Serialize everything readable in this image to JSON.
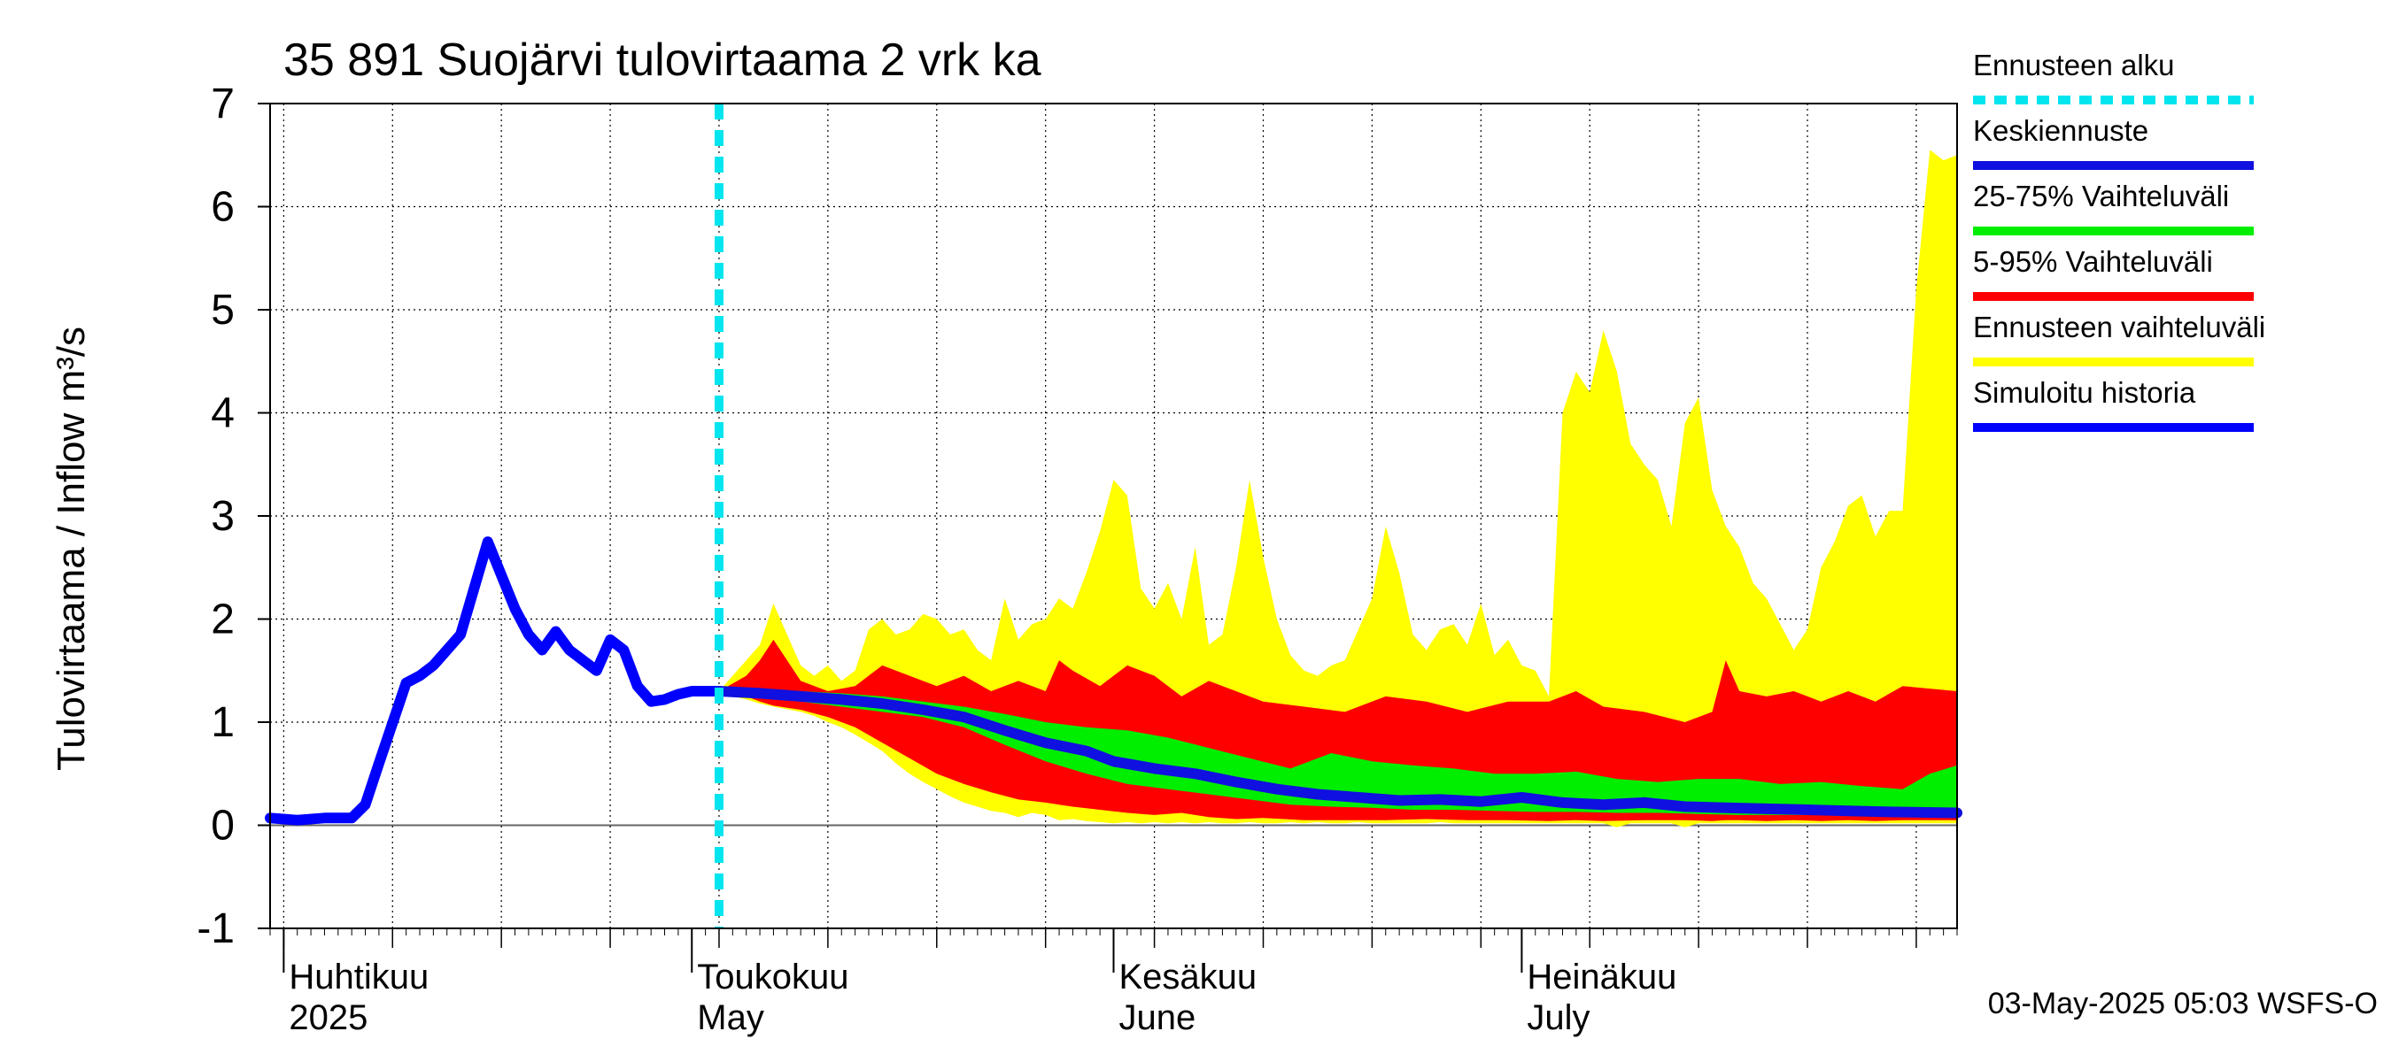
{
  "chart_data": {
    "type": "area",
    "title": "35 891 Suojärvi tulovirtaama 2 vrk ka",
    "ylabel": "Tulovirtaama / Inflow    m³/s",
    "ylim": [
      -1,
      7
    ],
    "yticks": [
      -1,
      0,
      1,
      2,
      3,
      4,
      5,
      6,
      7
    ],
    "xlim": [
      "2025-03-31",
      "2025-08-02"
    ],
    "grid": true,
    "legend_position": "right",
    "month_labels": [
      {
        "date": "2025-04-01",
        "fi": "Huhtikuu",
        "en": "2025"
      },
      {
        "date": "2025-05-01",
        "fi": "Toukokuu",
        "en": "May"
      },
      {
        "date": "2025-06-01",
        "fi": "Kesäkuu",
        "en": "June"
      },
      {
        "date": "2025-07-01",
        "fi": "Heinäkuu",
        "en": "July"
      }
    ],
    "forecast_start": "2025-05-03",
    "legend": [
      {
        "label": "Ennusteen alku",
        "color": "#00e5ee",
        "style": "dashed"
      },
      {
        "label": "Keskiennuste",
        "color": "#1010e0",
        "style": "line"
      },
      {
        "label": "25-75% Vaihteluväli",
        "color": "#00ee00",
        "style": "line"
      },
      {
        "label": "5-95% Vaihteluväli",
        "color": "#ff0000",
        "style": "line"
      },
      {
        "label": "Ennusteen vaihteluväli",
        "color": "#ffff00",
        "style": "line"
      },
      {
        "label": "Simuloitu historia",
        "color": "#0000ff",
        "style": "line"
      }
    ],
    "series": [
      {
        "name": "Simuloitu historia",
        "color": "#0000ff",
        "x": [
          "2025-03-31",
          "2025-04-02",
          "2025-04-04",
          "2025-04-06",
          "2025-04-07",
          "2025-04-08",
          "2025-04-10",
          "2025-04-11",
          "2025-04-12",
          "2025-04-14",
          "2025-04-16",
          "2025-04-18",
          "2025-04-19",
          "2025-04-20",
          "2025-04-21",
          "2025-04-22",
          "2025-04-24",
          "2025-04-25",
          "2025-04-26",
          "2025-04-27",
          "2025-04-28",
          "2025-04-29",
          "2025-04-30",
          "2025-05-01",
          "2025-05-03"
        ],
        "values": [
          0.07,
          0.05,
          0.07,
          0.07,
          0.2,
          0.6,
          1.38,
          1.45,
          1.55,
          1.85,
          2.75,
          2.1,
          1.85,
          1.7,
          1.88,
          1.7,
          1.5,
          1.8,
          1.7,
          1.35,
          1.2,
          1.22,
          1.27,
          1.3,
          1.3
        ]
      },
      {
        "name": "Keskiennuste",
        "color": "#1010e0",
        "x": [
          "2025-05-03",
          "2025-05-06",
          "2025-05-09",
          "2025-05-12",
          "2025-05-15",
          "2025-05-18",
          "2025-05-21",
          "2025-05-24",
          "2025-05-27",
          "2025-05-30",
          "2025-06-01",
          "2025-06-04",
          "2025-06-07",
          "2025-06-10",
          "2025-06-13",
          "2025-06-16",
          "2025-06-19",
          "2025-06-22",
          "2025-06-25",
          "2025-06-28",
          "2025-07-01",
          "2025-07-04",
          "2025-07-07",
          "2025-07-10",
          "2025-07-13",
          "2025-07-16",
          "2025-07-19",
          "2025-07-22",
          "2025-07-25",
          "2025-07-28",
          "2025-08-02"
        ],
        "values": [
          1.3,
          1.28,
          1.25,
          1.22,
          1.18,
          1.12,
          1.05,
          0.92,
          0.8,
          0.72,
          0.62,
          0.55,
          0.5,
          0.42,
          0.35,
          0.3,
          0.27,
          0.24,
          0.25,
          0.23,
          0.27,
          0.22,
          0.2,
          0.22,
          0.18,
          0.17,
          0.16,
          0.15,
          0.14,
          0.13,
          0.12
        ]
      }
    ],
    "bands": [
      {
        "name": "Ennusteen vaihteluväli",
        "color": "#ffff00",
        "x": [
          "2025-05-03",
          "2025-05-05",
          "2025-05-06",
          "2025-05-07",
          "2025-05-09",
          "2025-05-10",
          "2025-05-11",
          "2025-05-12",
          "2025-05-13",
          "2025-05-14",
          "2025-05-15",
          "2025-05-16",
          "2025-05-17",
          "2025-05-18",
          "2025-05-19",
          "2025-05-20",
          "2025-05-21",
          "2025-05-22",
          "2025-05-23",
          "2025-05-24",
          "2025-05-25",
          "2025-05-26",
          "2025-05-27",
          "2025-05-28",
          "2025-05-29",
          "2025-05-30",
          "2025-05-31",
          "2025-06-01",
          "2025-06-02",
          "2025-06-03",
          "2025-06-04",
          "2025-06-05",
          "2025-06-06",
          "2025-06-07",
          "2025-06-08",
          "2025-06-09",
          "2025-06-10",
          "2025-06-11",
          "2025-06-12",
          "2025-06-13",
          "2025-06-14",
          "2025-06-15",
          "2025-06-16",
          "2025-06-17",
          "2025-06-18",
          "2025-06-19",
          "2025-06-20",
          "2025-06-21",
          "2025-06-22",
          "2025-06-23",
          "2025-06-24",
          "2025-06-25",
          "2025-06-26",
          "2025-06-27",
          "2025-06-28",
          "2025-06-29",
          "2025-06-30",
          "2025-07-01",
          "2025-07-02",
          "2025-07-03",
          "2025-07-04",
          "2025-07-05",
          "2025-07-06",
          "2025-07-07",
          "2025-07-08",
          "2025-07-09",
          "2025-07-10",
          "2025-07-11",
          "2025-07-12",
          "2025-07-13",
          "2025-07-14",
          "2025-07-15",
          "2025-07-16",
          "2025-07-17",
          "2025-07-18",
          "2025-07-19",
          "2025-07-20",
          "2025-07-21",
          "2025-07-22",
          "2025-07-23",
          "2025-07-24",
          "2025-07-25",
          "2025-07-26",
          "2025-07-27",
          "2025-07-28",
          "2025-07-29",
          "2025-07-30",
          "2025-07-31",
          "2025-08-01",
          "2025-08-02"
        ],
        "upper": [
          1.3,
          1.6,
          1.75,
          2.15,
          1.55,
          1.45,
          1.55,
          1.4,
          1.5,
          1.9,
          2.0,
          1.85,
          1.9,
          2.05,
          2.0,
          1.85,
          1.9,
          1.7,
          1.6,
          2.2,
          1.8,
          1.95,
          2.0,
          2.2,
          2.1,
          2.45,
          2.85,
          3.35,
          3.2,
          2.3,
          2.1,
          2.35,
          2.0,
          2.7,
          1.75,
          1.85,
          2.5,
          3.35,
          2.6,
          2.0,
          1.65,
          1.5,
          1.45,
          1.55,
          1.6,
          1.9,
          2.2,
          2.9,
          2.45,
          1.85,
          1.7,
          1.9,
          1.95,
          1.75,
          2.15,
          1.65,
          1.8,
          1.55,
          1.5,
          1.25,
          4.0,
          4.4,
          4.2,
          4.8,
          4.4,
          3.7,
          3.5,
          3.35,
          2.9,
          3.9,
          4.15,
          3.25,
          2.9,
          2.7,
          2.35,
          2.2,
          1.95,
          1.7,
          1.9,
          2.5,
          2.75,
          3.1,
          3.2,
          2.8,
          3.05,
          3.05,
          5.2,
          6.55,
          6.45,
          6.5
        ],
        "lower": [
          1.28,
          1.22,
          1.18,
          1.15,
          1.1,
          1.06,
          1.0,
          0.95,
          0.88,
          0.8,
          0.72,
          0.6,
          0.5,
          0.42,
          0.35,
          0.28,
          0.22,
          0.18,
          0.14,
          0.12,
          0.08,
          0.12,
          0.1,
          0.05,
          0.06,
          0.04,
          0.03,
          0.02,
          0.03,
          0.02,
          0.03,
          0.02,
          0.03,
          0.02,
          0.03,
          0.02,
          0.02,
          0.03,
          0.02,
          0.02,
          0.03,
          0.02,
          0.03,
          0.02,
          0.02,
          0.03,
          0.02,
          0.02,
          0.02,
          0.02,
          0.02,
          0.03,
          0.02,
          0.02,
          0.02,
          0.02,
          0.02,
          0.02,
          0.02,
          0.02,
          0.02,
          0.02,
          0.02,
          0.02,
          -0.02,
          0.02,
          0.02,
          0.02,
          0.02,
          -0.02,
          0.02,
          0.02,
          0.02,
          0.02,
          0.02,
          0.02,
          0.02,
          0.02,
          0.02,
          0.02,
          0.02,
          0.02,
          0.02,
          0.02,
          0.02,
          0.02,
          0.02,
          0.02,
          0.02,
          0.02
        ]
      },
      {
        "name": "5-95% Vaihteluväli",
        "color": "#ff0000",
        "x": [
          "2025-05-03",
          "2025-05-05",
          "2025-05-06",
          "2025-05-07",
          "2025-05-09",
          "2025-05-11",
          "2025-05-13",
          "2025-05-15",
          "2025-05-17",
          "2025-05-19",
          "2025-05-21",
          "2025-05-23",
          "2025-05-25",
          "2025-05-27",
          "2025-05-28",
          "2025-05-29",
          "2025-05-31",
          "2025-06-02",
          "2025-06-04",
          "2025-06-06",
          "2025-06-08",
          "2025-06-10",
          "2025-06-12",
          "2025-06-15",
          "2025-06-18",
          "2025-06-21",
          "2025-06-24",
          "2025-06-27",
          "2025-06-30",
          "2025-07-03",
          "2025-07-05",
          "2025-07-07",
          "2025-07-10",
          "2025-07-13",
          "2025-07-15",
          "2025-07-16",
          "2025-07-17",
          "2025-07-19",
          "2025-07-21",
          "2025-07-23",
          "2025-07-25",
          "2025-07-27",
          "2025-07-29",
          "2025-08-02"
        ],
        "upper": [
          1.3,
          1.45,
          1.6,
          1.8,
          1.4,
          1.3,
          1.35,
          1.55,
          1.45,
          1.35,
          1.45,
          1.3,
          1.4,
          1.3,
          1.6,
          1.5,
          1.35,
          1.55,
          1.45,
          1.25,
          1.4,
          1.3,
          1.2,
          1.15,
          1.1,
          1.25,
          1.2,
          1.1,
          1.2,
          1.2,
          1.3,
          1.15,
          1.1,
          1.0,
          1.1,
          1.6,
          1.3,
          1.25,
          1.3,
          1.2,
          1.3,
          1.2,
          1.35,
          1.3
        ],
        "lower": [
          1.28,
          1.25,
          1.2,
          1.16,
          1.12,
          1.05,
          0.95,
          0.8,
          0.65,
          0.5,
          0.4,
          0.32,
          0.25,
          0.22,
          0.2,
          0.18,
          0.15,
          0.12,
          0.1,
          0.12,
          0.08,
          0.06,
          0.07,
          0.05,
          0.05,
          0.05,
          0.06,
          0.05,
          0.05,
          0.04,
          0.05,
          0.04,
          0.05,
          0.05,
          0.04,
          0.05,
          0.05,
          0.04,
          0.05,
          0.04,
          0.05,
          0.04,
          0.05,
          0.05
        ]
      },
      {
        "name": "25-75% Vaihteluväli",
        "color": "#00ee00",
        "x": [
          "2025-05-03",
          "2025-05-06",
          "2025-05-09",
          "2025-05-12",
          "2025-05-15",
          "2025-05-18",
          "2025-05-21",
          "2025-05-24",
          "2025-05-27",
          "2025-05-30",
          "2025-06-02",
          "2025-06-05",
          "2025-06-08",
          "2025-06-11",
          "2025-06-14",
          "2025-06-17",
          "2025-06-20",
          "2025-06-23",
          "2025-06-26",
          "2025-06-29",
          "2025-07-02",
          "2025-07-05",
          "2025-07-08",
          "2025-07-11",
          "2025-07-14",
          "2025-07-17",
          "2025-07-20",
          "2025-07-23",
          "2025-07-26",
          "2025-07-29",
          "2025-07-31",
          "2025-08-02"
        ],
        "upper": [
          1.3,
          1.32,
          1.3,
          1.28,
          1.25,
          1.2,
          1.15,
          1.08,
          1.0,
          0.95,
          0.92,
          0.85,
          0.75,
          0.65,
          0.55,
          0.7,
          0.62,
          0.58,
          0.55,
          0.5,
          0.5,
          0.52,
          0.45,
          0.42,
          0.45,
          0.45,
          0.4,
          0.42,
          0.38,
          0.35,
          0.5,
          0.58
        ],
        "lower": [
          1.28,
          1.25,
          1.2,
          1.15,
          1.1,
          1.05,
          0.95,
          0.78,
          0.62,
          0.5,
          0.4,
          0.35,
          0.3,
          0.25,
          0.2,
          0.18,
          0.17,
          0.15,
          0.15,
          0.14,
          0.13,
          0.13,
          0.12,
          0.12,
          0.11,
          0.1,
          0.1,
          0.1,
          0.1,
          0.1,
          0.1,
          0.1
        ]
      }
    ]
  },
  "footer_stamp": "03-May-2025 05:03 WSFS-O"
}
